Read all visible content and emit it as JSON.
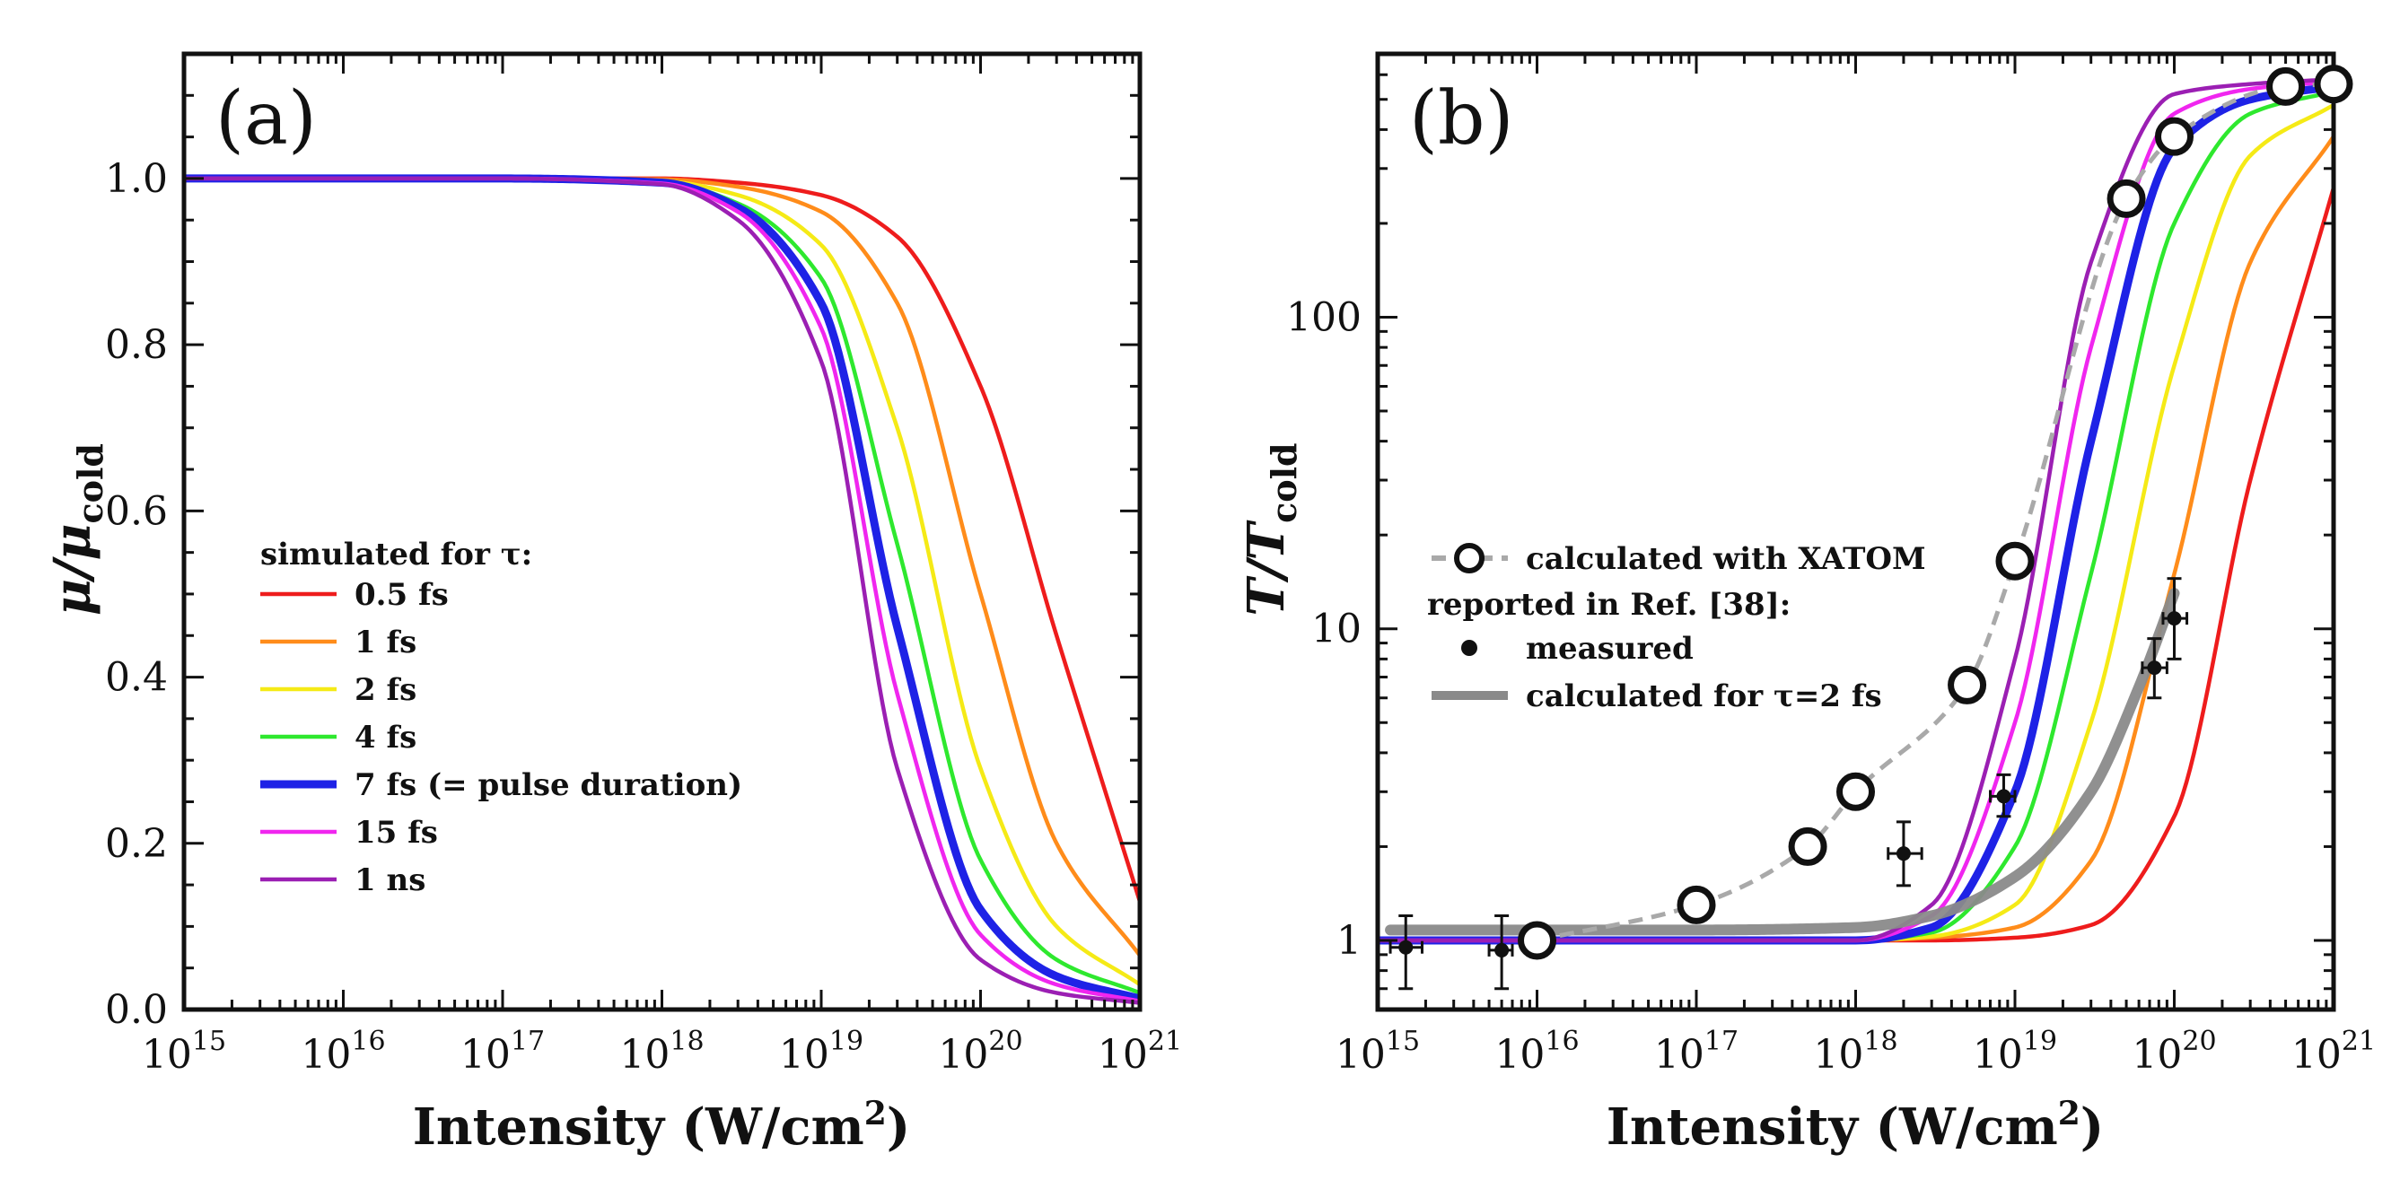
{
  "chart_data": [
    {
      "type": "line",
      "panel": "(a)",
      "xlabel": "Intensity (W/cm²)",
      "ylabel": "μ/μ_cold",
      "xscale": "log",
      "xlim": [
        1000000000000000.0,
        1e+21
      ],
      "ylim": [
        0,
        1.15
      ],
      "x_tick_labels": [
        {
          "base": "10",
          "exp": "15"
        },
        {
          "base": "10",
          "exp": "16"
        },
        {
          "base": "10",
          "exp": "17"
        },
        {
          "base": "10",
          "exp": "18"
        },
        {
          "base": "10",
          "exp": "19"
        },
        {
          "base": "10",
          "exp": "20"
        },
        {
          "base": "10",
          "exp": "21"
        }
      ],
      "y_tick_labels": [
        "0.0",
        "0.2",
        "0.4",
        "0.6",
        "0.8",
        "1.0"
      ],
      "legend_title": "simulated for τ:",
      "legend_position": "center-left",
      "x": [
        1000000000000000.0,
        1e+16,
        1e+17,
        1e+18,
        3e+18,
        1e+19,
        3e+19,
        1e+20,
        3e+20,
        1e+21
      ],
      "series": [
        {
          "name": "0.5 fs",
          "color": "#ee1c1c",
          "values": [
            1.0,
            1.0,
            1.0,
            1.0,
            0.995,
            0.98,
            0.93,
            0.75,
            0.45,
            0.13
          ]
        },
        {
          "name": "1 fs",
          "color": "#ff8c1a",
          "values": [
            1.0,
            1.0,
            1.0,
            0.999,
            0.99,
            0.96,
            0.85,
            0.5,
            0.2,
            0.065
          ]
        },
        {
          "name": "2 fs",
          "color": "#f5ea16",
          "values": [
            1.0,
            1.0,
            1.0,
            0.997,
            0.98,
            0.92,
            0.7,
            0.29,
            0.1,
            0.03
          ]
        },
        {
          "name": "4 fs",
          "color": "#2ee82e",
          "values": [
            1.0,
            1.0,
            1.0,
            0.996,
            0.97,
            0.88,
            0.56,
            0.18,
            0.06,
            0.02
          ]
        },
        {
          "name": "7 fs (= pulse duration)",
          "color": "#1e22e6",
          "values": [
            1.0,
            1.0,
            1.0,
            0.995,
            0.965,
            0.85,
            0.46,
            0.12,
            0.04,
            0.013
          ]
        },
        {
          "name": "15 fs",
          "color": "#f026ef",
          "values": [
            1.0,
            1.0,
            1.0,
            0.994,
            0.96,
            0.82,
            0.38,
            0.09,
            0.03,
            0.01
          ]
        },
        {
          "name": "1 ns",
          "color": "#9b1fb3",
          "values": [
            1.0,
            1.0,
            1.0,
            0.993,
            0.95,
            0.78,
            0.29,
            0.06,
            0.02,
            0.008
          ]
        }
      ]
    },
    {
      "type": "line",
      "panel": "(b)",
      "xlabel": "Intensity (W/cm²)",
      "ylabel": "T/T_cold",
      "xscale": "log",
      "yscale": "log",
      "xlim": [
        1000000000000000.0,
        1e+21
      ],
      "ylim": [
        0.6,
        700
      ],
      "x_tick_labels": [
        {
          "base": "10",
          "exp": "15"
        },
        {
          "base": "10",
          "exp": "16"
        },
        {
          "base": "10",
          "exp": "17"
        },
        {
          "base": "10",
          "exp": "18"
        },
        {
          "base": "10",
          "exp": "19"
        },
        {
          "base": "10",
          "exp": "20"
        },
        {
          "base": "10",
          "exp": "21"
        }
      ],
      "y_tick_labels": [
        "1",
        "10",
        "100"
      ],
      "legend_position": "center-left",
      "legend": {
        "xatom": "calculated with XATOM",
        "reported": "reported in Ref. [38]:",
        "measured": "measured",
        "calc_tau": "calculated for τ=2 fs"
      },
      "x": [
        1000000000000000.0,
        1e+16,
        1e+17,
        1e+18,
        3e+18,
        1e+19,
        3e+19,
        1e+20,
        3e+20,
        1e+21
      ],
      "series": [
        {
          "name": "0.5 fs",
          "color": "#ee1c1c",
          "values": [
            1.0,
            1.0,
            1.0,
            1.0,
            1.0,
            1.02,
            1.12,
            2.5,
            30,
            260
          ]
        },
        {
          "name": "1 fs",
          "color": "#ff8c1a",
          "values": [
            1.0,
            1.0,
            1.0,
            1.0,
            1.02,
            1.1,
            1.8,
            15,
            150,
            380
          ]
        },
        {
          "name": "2 fs",
          "color": "#f5ea16",
          "values": [
            1.0,
            1.0,
            1.0,
            1.0,
            1.03,
            1.3,
            5,
            70,
            330,
            480
          ]
        },
        {
          "name": "4 fs",
          "color": "#2ee82e",
          "values": [
            1.0,
            1.0,
            1.0,
            1.0,
            1.06,
            2,
            15,
            200,
            450,
            530
          ]
        },
        {
          "name": "7 fs (= pulse duration)",
          "color": "#1e22e6",
          "values": [
            1.0,
            1.0,
            1.0,
            1.0,
            1.1,
            3,
            40,
            350,
            500,
            550
          ]
        },
        {
          "name": "15 fs",
          "color": "#f026ef",
          "values": [
            1.0,
            1.0,
            1.0,
            1.0,
            1.2,
            5,
            80,
            450,
            540,
            570
          ]
        },
        {
          "name": "1 ns",
          "color": "#9b1fb3",
          "values": [
            1.0,
            1.0,
            1.0,
            1.0,
            1.3,
            8,
            150,
            520,
            560,
            580
          ]
        }
      ],
      "xatom": {
        "x": [
          1e+16,
          1e+17,
          5e+17,
          1e+18,
          5e+18,
          1e+19,
          5e+19,
          1e+20,
          5e+20,
          1e+21
        ],
        "y": [
          1.0,
          1.3,
          2.0,
          3.0,
          6.6,
          16.5,
          240,
          380,
          550,
          560
        ]
      },
      "calc_tau_2fs": {
        "x": [
          1200000000000000.0,
          1e+16,
          1e+17,
          1e+18,
          3e+18,
          1e+19,
          3e+19,
          6e+19,
          1e+20
        ],
        "y": [
          1.08,
          1.08,
          1.08,
          1.1,
          1.2,
          1.6,
          3.0,
          6.5,
          13
        ]
      },
      "measured": [
        {
          "x": 1500000000000000.0,
          "y": 0.95,
          "xerr": [
            1200000000000000.0,
            1900000000000000.0
          ],
          "yerr": [
            0.7,
            1.2
          ]
        },
        {
          "x": 6000000000000000.0,
          "y": 0.93,
          "xerr": [
            5000000000000000.0,
            7000000000000000.0
          ],
          "yerr": [
            0.7,
            1.2
          ]
        },
        {
          "x": 2e+18,
          "y": 1.9,
          "xerr": [
            1.6e+18,
            2.6e+18
          ],
          "yerr": [
            1.5,
            2.4
          ]
        },
        {
          "x": 8.5e+18,
          "y": 2.9,
          "xerr": [
            7e+18,
            1e+19
          ],
          "yerr": [
            2.5,
            3.4
          ]
        },
        {
          "x": 7.5e+19,
          "y": 7.5,
          "xerr": [
            6.3e+19,
            9e+19
          ],
          "yerr": [
            6,
            9.3
          ]
        },
        {
          "x": 1e+20,
          "y": 10.8,
          "xerr": [
            8.5e+19,
            1.2e+20
          ],
          "yerr": [
            8,
            14.5
          ]
        }
      ]
    }
  ]
}
